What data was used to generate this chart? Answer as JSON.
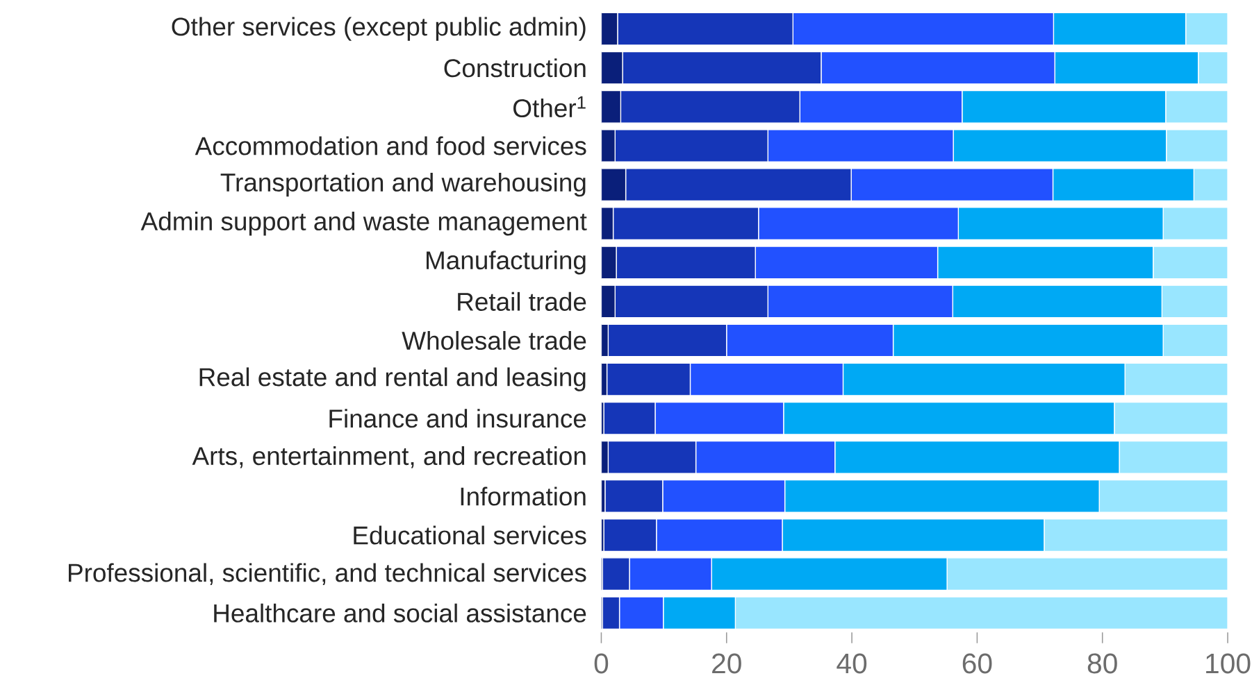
{
  "chart_data": {
    "type": "bar",
    "orientation": "horizontal",
    "stacked": true,
    "categories": [
      "Other services (except public admin)",
      "Construction",
      "Other$^{1}$",
      "Accommodation and food services",
      "Transportation and warehousing",
      "Admin support and waste management",
      "Manufacturing",
      "Retail trade",
      "Wholesale trade",
      "Real estate and rental and leasing",
      "Finance and insurance",
      "Arts, entertainment, and recreation",
      "Information",
      "Educational services",
      "Professional, scientific, and technical services",
      "Healthcare and social assistance"
    ],
    "series": [
      {
        "color": "#0a1f7a",
        "values": [
          2.6,
          3.4,
          3.1,
          2.2,
          3.9,
          1.9,
          2.4,
          2.2,
          1.1,
          0.9,
          0.4,
          1.1,
          0.6,
          0.4,
          0.2,
          0.2
        ]
      },
      {
        "color": "#1536b8",
        "values": [
          28.0,
          31.7,
          28.6,
          24.4,
          36.0,
          23.2,
          22.2,
          24.4,
          18.9,
          13.3,
          8.2,
          14.0,
          9.2,
          8.4,
          4.3,
          2.7
        ]
      },
      {
        "color": "#2251ff",
        "values": [
          41.6,
          37.3,
          25.9,
          29.6,
          32.2,
          31.9,
          29.1,
          29.5,
          26.6,
          24.4,
          20.5,
          22.2,
          19.5,
          20.1,
          13.1,
          7.0
        ]
      },
      {
        "color": "#00a9f4",
        "values": [
          21.1,
          22.9,
          32.5,
          34.0,
          22.5,
          32.7,
          34.4,
          33.4,
          43.1,
          45.0,
          52.8,
          45.4,
          50.2,
          41.8,
          37.6,
          11.5
        ]
      },
      {
        "color": "#99e6ff",
        "values": [
          6.7,
          4.7,
          9.9,
          9.8,
          5.4,
          10.3,
          11.9,
          10.5,
          10.3,
          16.4,
          18.1,
          17.3,
          20.5,
          29.3,
          44.8,
          78.6
        ]
      }
    ],
    "xlim": [
      0,
      100
    ],
    "xticks": [
      0,
      20,
      40,
      60,
      80,
      100
    ],
    "grid": false
  }
}
